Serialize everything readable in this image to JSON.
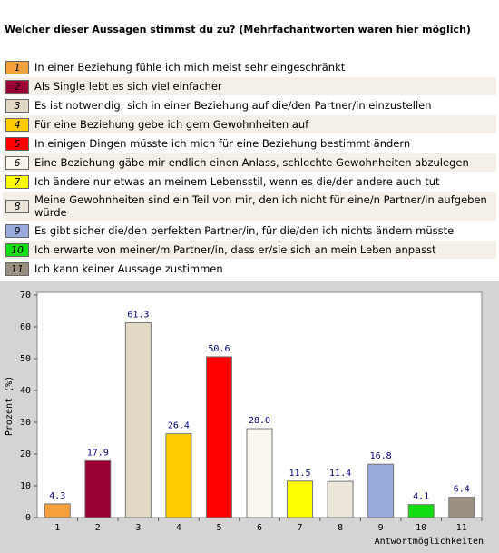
{
  "chart_data": {
    "type": "bar",
    "title": "Welcher dieser Aussagen stimmst du zu? (Mehrfachantworten waren hier möglich)",
    "legend": [
      "In einer Beziehung fühle ich mich meist sehr eingeschränkt",
      "Als Single lebt es sich viel einfacher",
      "Es ist notwendig, sich in einer Beziehung auf die/den Partner/in einzustellen",
      "Für eine Beziehung gebe ich gern Gewohnheiten auf",
      "In einigen Dingen müsste ich mich für eine Beziehung bestimmt ändern",
      "Eine Beziehung gäbe mir endlich einen Anlass, schlechte Gewohnheiten abzulegen",
      "Ich ändere nur etwas an meinem Lebensstil, wenn es die/der andere auch tut",
      "Meine Gewohnheiten sind ein Teil von mir, den ich nicht für eine/n Partner/in aufgeben würde",
      "Es gibt sicher die/den perfekten Partner/in, für die/den ich nichts ändern müsste",
      "Ich erwarte von meiner/m Partner/in, dass er/sie sich an mein Leben anpasst",
      "Ich kann keiner Aussage zustimmen"
    ],
    "categories": [
      "1",
      "2",
      "3",
      "4",
      "5",
      "6",
      "7",
      "8",
      "9",
      "10",
      "11"
    ],
    "values": [
      4.3,
      17.9,
      61.3,
      26.4,
      50.6,
      28.0,
      11.5,
      11.4,
      16.8,
      4.1,
      6.4
    ],
    "value_labels": [
      "4.3",
      "17.9",
      "61.3",
      "26.4",
      "50.6",
      "28.0",
      "11.5",
      "11.4",
      "16.8",
      "4.1",
      "6.4"
    ],
    "colors": [
      "#f5a03c",
      "#990033",
      "#e2d8c6",
      "#ffcc00",
      "#ff0000",
      "#f9f7ee",
      "#ffff00",
      "#ece6da",
      "#99aadd",
      "#11dd11",
      "#9c9080"
    ],
    "ylabel": "Prozent (%)",
    "xlabel": "Antwortmöglichkeiten",
    "ylim": [
      0,
      70
    ],
    "yticks": [
      0,
      10,
      20,
      30,
      40,
      50,
      60,
      70
    ]
  }
}
